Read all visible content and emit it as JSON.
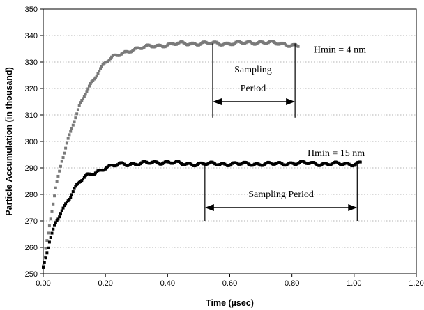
{
  "chart_data": {
    "type": "scatter",
    "title": "",
    "xlabel": "Time (µsec)",
    "ylabel": "Particle Accumulation (in thousand)",
    "xlim": [
      0,
      1.2
    ],
    "ylim": [
      250,
      350
    ],
    "xticks": [
      "0.00",
      "0.20",
      "0.40",
      "0.60",
      "0.80",
      "1.00",
      "1.20"
    ],
    "yticks": [
      "250",
      "260",
      "270",
      "280",
      "290",
      "300",
      "310",
      "320",
      "330",
      "340",
      "350"
    ],
    "grid": "horizontal",
    "series": [
      {
        "name": "Hmin = 4 nm",
        "color": "#7a7a7a",
        "x": [
          0.0,
          0.02,
          0.04,
          0.06,
          0.08,
          0.1,
          0.12,
          0.14,
          0.16,
          0.18,
          0.2,
          0.22,
          0.25,
          0.28,
          0.3,
          0.35,
          0.4,
          0.45,
          0.5,
          0.55,
          0.6,
          0.65,
          0.7,
          0.75,
          0.8,
          0.82
        ],
        "y": [
          253,
          268,
          282,
          293,
          301,
          308,
          314,
          319,
          323,
          327,
          330,
          331.5,
          333,
          334.5,
          335,
          336,
          336.5,
          337,
          337,
          337,
          337,
          337.2,
          337.5,
          337,
          336.5,
          336
        ]
      },
      {
        "name": "Hmin = 15 nm",
        "color": "#000000",
        "x": [
          0.0,
          0.02,
          0.04,
          0.06,
          0.08,
          0.1,
          0.12,
          0.14,
          0.16,
          0.18,
          0.2,
          0.22,
          0.25,
          0.3,
          0.35,
          0.4,
          0.45,
          0.5,
          0.55,
          0.6,
          0.65,
          0.7,
          0.75,
          0.8,
          0.85,
          0.9,
          0.95,
          1.0,
          1.02
        ],
        "y": [
          252,
          262,
          269,
          274,
          278,
          282,
          285,
          287,
          288,
          289,
          290,
          290.5,
          291.5,
          291.5,
          292,
          292.2,
          291.5,
          291.5,
          291.5,
          291.5,
          291.5,
          291.5,
          291.5,
          291.8,
          291.8,
          291.5,
          291.5,
          291.5,
          292
        ]
      }
    ],
    "annotations": [
      {
        "label": "Hmin = 4 nm",
        "text_x": 0.87,
        "text_y": 333.5
      },
      {
        "label": "Sampling Period",
        "line1": "Sampling",
        "line2": "Period",
        "x_start": 0.545,
        "x_end": 0.81,
        "y_arrow": 315,
        "y_top": 337,
        "y_bottom": 309,
        "text_x": 0.675,
        "text_y1": 326,
        "text_y2": 319
      },
      {
        "label": "Hmin = 15 nm",
        "text_x": 0.85,
        "text_y": 294.5
      },
      {
        "label": "Sampling Period",
        "x_start": 0.52,
        "x_end": 1.01,
        "y_arrow": 275,
        "y_top": 292,
        "y_bottom": 270,
        "text_x": 0.765,
        "text_y": 279
      }
    ]
  }
}
